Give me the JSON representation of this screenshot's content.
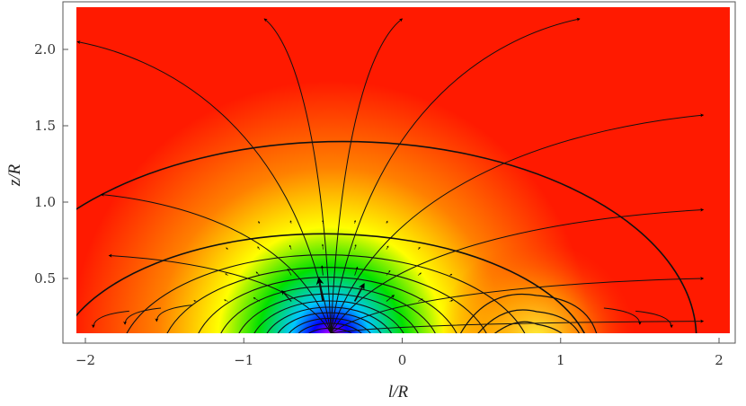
{
  "chart_data": {
    "type": "heatmap",
    "title": "",
    "xlabel": "l/R",
    "ylabel": "z/R",
    "xlim": [
      -2.1,
      2.1
    ],
    "ylim": [
      0.12,
      2.27
    ],
    "xticks": [
      {
        "value": -2,
        "label": "−2"
      },
      {
        "value": -1,
        "label": "−1"
      },
      {
        "value": 0,
        "label": "0"
      },
      {
        "value": 1,
        "label": "1"
      },
      {
        "value": 2,
        "label": "2"
      }
    ],
    "yticks": [
      {
        "value": 0.5,
        "label": "0.5"
      },
      {
        "value": 1.0,
        "label": "1.0"
      },
      {
        "value": 1.5,
        "label": "1.5"
      },
      {
        "value": 2.0,
        "label": "2.0"
      }
    ],
    "colormap": [
      "#ff1a00",
      "#ff8000",
      "#ffff00",
      "#00e000",
      "#00c8ff",
      "#0000ff",
      "#ff00ff"
    ],
    "grid": false,
    "legend": "none",
    "field_sources": [
      {
        "l": -0.45,
        "z": 0.12,
        "strength": 1.0
      },
      {
        "l": 0.85,
        "z": 0.12,
        "strength": -0.35
      }
    ],
    "streamline_endpoints": [
      {
        "l": -2.05,
        "z": 2.05
      },
      {
        "l": -1.9,
        "z": 1.05
      },
      {
        "l": -1.85,
        "z": 0.65
      },
      {
        "l": -0.87,
        "z": 2.2
      },
      {
        "l": 0.0,
        "z": 2.2
      },
      {
        "l": 1.12,
        "z": 2.2
      },
      {
        "l": 1.9,
        "z": 1.57
      },
      {
        "l": 1.9,
        "z": 0.95
      },
      {
        "l": 1.9,
        "z": 0.5
      },
      {
        "l": 1.9,
        "z": 0.22
      }
    ]
  }
}
